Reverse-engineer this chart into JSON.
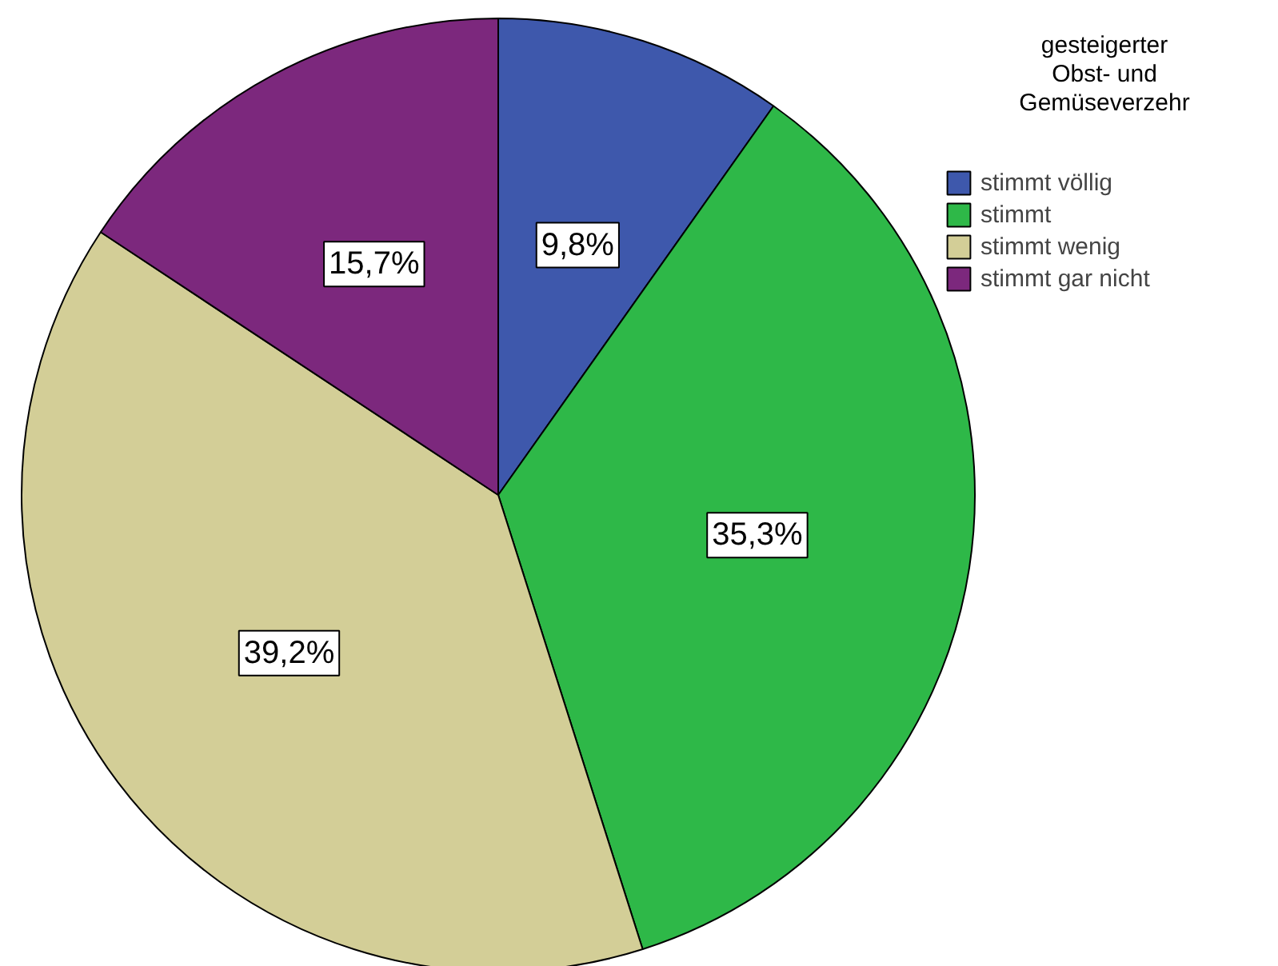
{
  "chart_data": {
    "type": "pie",
    "legend_title": "gesteigerter Obst- und Gemüseverzehr",
    "categories": [
      "stimmt völlig",
      "stimmt",
      "stimmt wenig",
      "stimmt gar nicht"
    ],
    "values": [
      9.8,
      35.3,
      39.2,
      15.7
    ],
    "value_labels": [
      "9,8%",
      "35,3%",
      "39,2%",
      "15,7%"
    ],
    "colors": [
      "#3e58ac",
      "#2eb848",
      "#d3ce97",
      "#7c287d"
    ],
    "legend": "top right"
  }
}
